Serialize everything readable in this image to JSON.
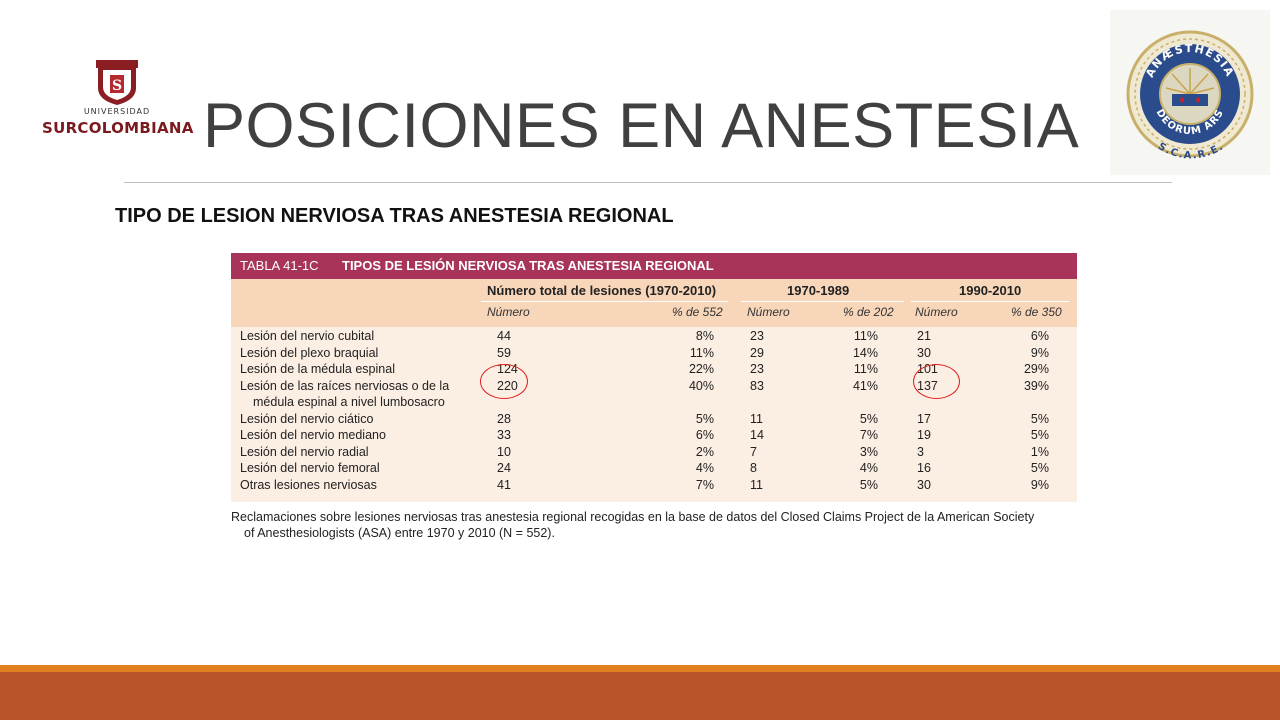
{
  "logo_left": {
    "university": "UNIVERSIDAD",
    "name": "SURCOLOMBIANA"
  },
  "page_title": "POSICIONES EN ANESTESIA",
  "logo_right": {
    "top_text": "ANÆSTHESIA",
    "bottom_text": "DEORUM ARS",
    "acronym": "S.C.A.R.E."
  },
  "subtitle": "TIPO DE LESION NERVIOSA TRAS ANESTESIA REGIONAL",
  "table": {
    "label": "TABLA 41-1C",
    "title": "TIPOS DE LESIÓN NERVIOSA TRAS ANESTESIA REGIONAL",
    "groups": [
      "Número total de lesiones (1970-2010)",
      "1970-1989",
      "1990-2010"
    ],
    "subheaders": [
      "Número",
      "% de 552",
      "Número",
      "% de 202",
      "Número",
      "% de 350"
    ],
    "rows": [
      {
        "label": "Lesión del nervio cubital",
        "label2": "",
        "v": [
          "44",
          "8%",
          "23",
          "11%",
          "21",
          "6%"
        ]
      },
      {
        "label": "Lesión del plexo braquial",
        "label2": "",
        "v": [
          "59",
          "11%",
          "29",
          "14%",
          "30",
          "9%"
        ]
      },
      {
        "label": "Lesión de la médula espinal",
        "label2": "",
        "v": [
          "124",
          "22%",
          "23",
          "11%",
          "101",
          "29%"
        ]
      },
      {
        "label": "Lesión de las raíces nerviosas o de la",
        "label2": "médula espinal a nivel lumbosacro",
        "v": [
          "220",
          "40%",
          "83",
          "41%",
          "137",
          "39%"
        ]
      },
      {
        "label": "Lesión del nervio ciático",
        "label2": "",
        "v": [
          "28",
          "5%",
          "11",
          "5%",
          "17",
          "5%"
        ]
      },
      {
        "label": "Lesión del nervio mediano",
        "label2": "",
        "v": [
          "33",
          "6%",
          "14",
          "7%",
          "19",
          "5%"
        ]
      },
      {
        "label": "Lesión del nervio radial",
        "label2": "",
        "v": [
          "10",
          "2%",
          "7",
          "3%",
          "3",
          "1%"
        ]
      },
      {
        "label": "Lesión del nervio femoral",
        "label2": "",
        "v": [
          "24",
          "4%",
          "8",
          "4%",
          "16",
          "5%"
        ]
      },
      {
        "label": "Otras lesiones nerviosas",
        "label2": "",
        "v": [
          "41",
          "7%",
          "11",
          "5%",
          "30",
          "9%"
        ]
      }
    ],
    "caption_line1": "Reclamaciones sobre lesiones nerviosas tras anestesia regional recogidas en la base de datos del Closed Claims Project de la American Society",
    "caption_line2": "of Anesthesiologists (ASA) entre 1970 y 2010 (N = 552)."
  },
  "colors": {
    "table_header": "#a8345a",
    "table_body": "#fbeee3",
    "head_band": "#f8d6ba",
    "bar_orange": "#e07f1f",
    "bar_rust": "#b8542a",
    "highlight_circle": "#dd2222"
  }
}
